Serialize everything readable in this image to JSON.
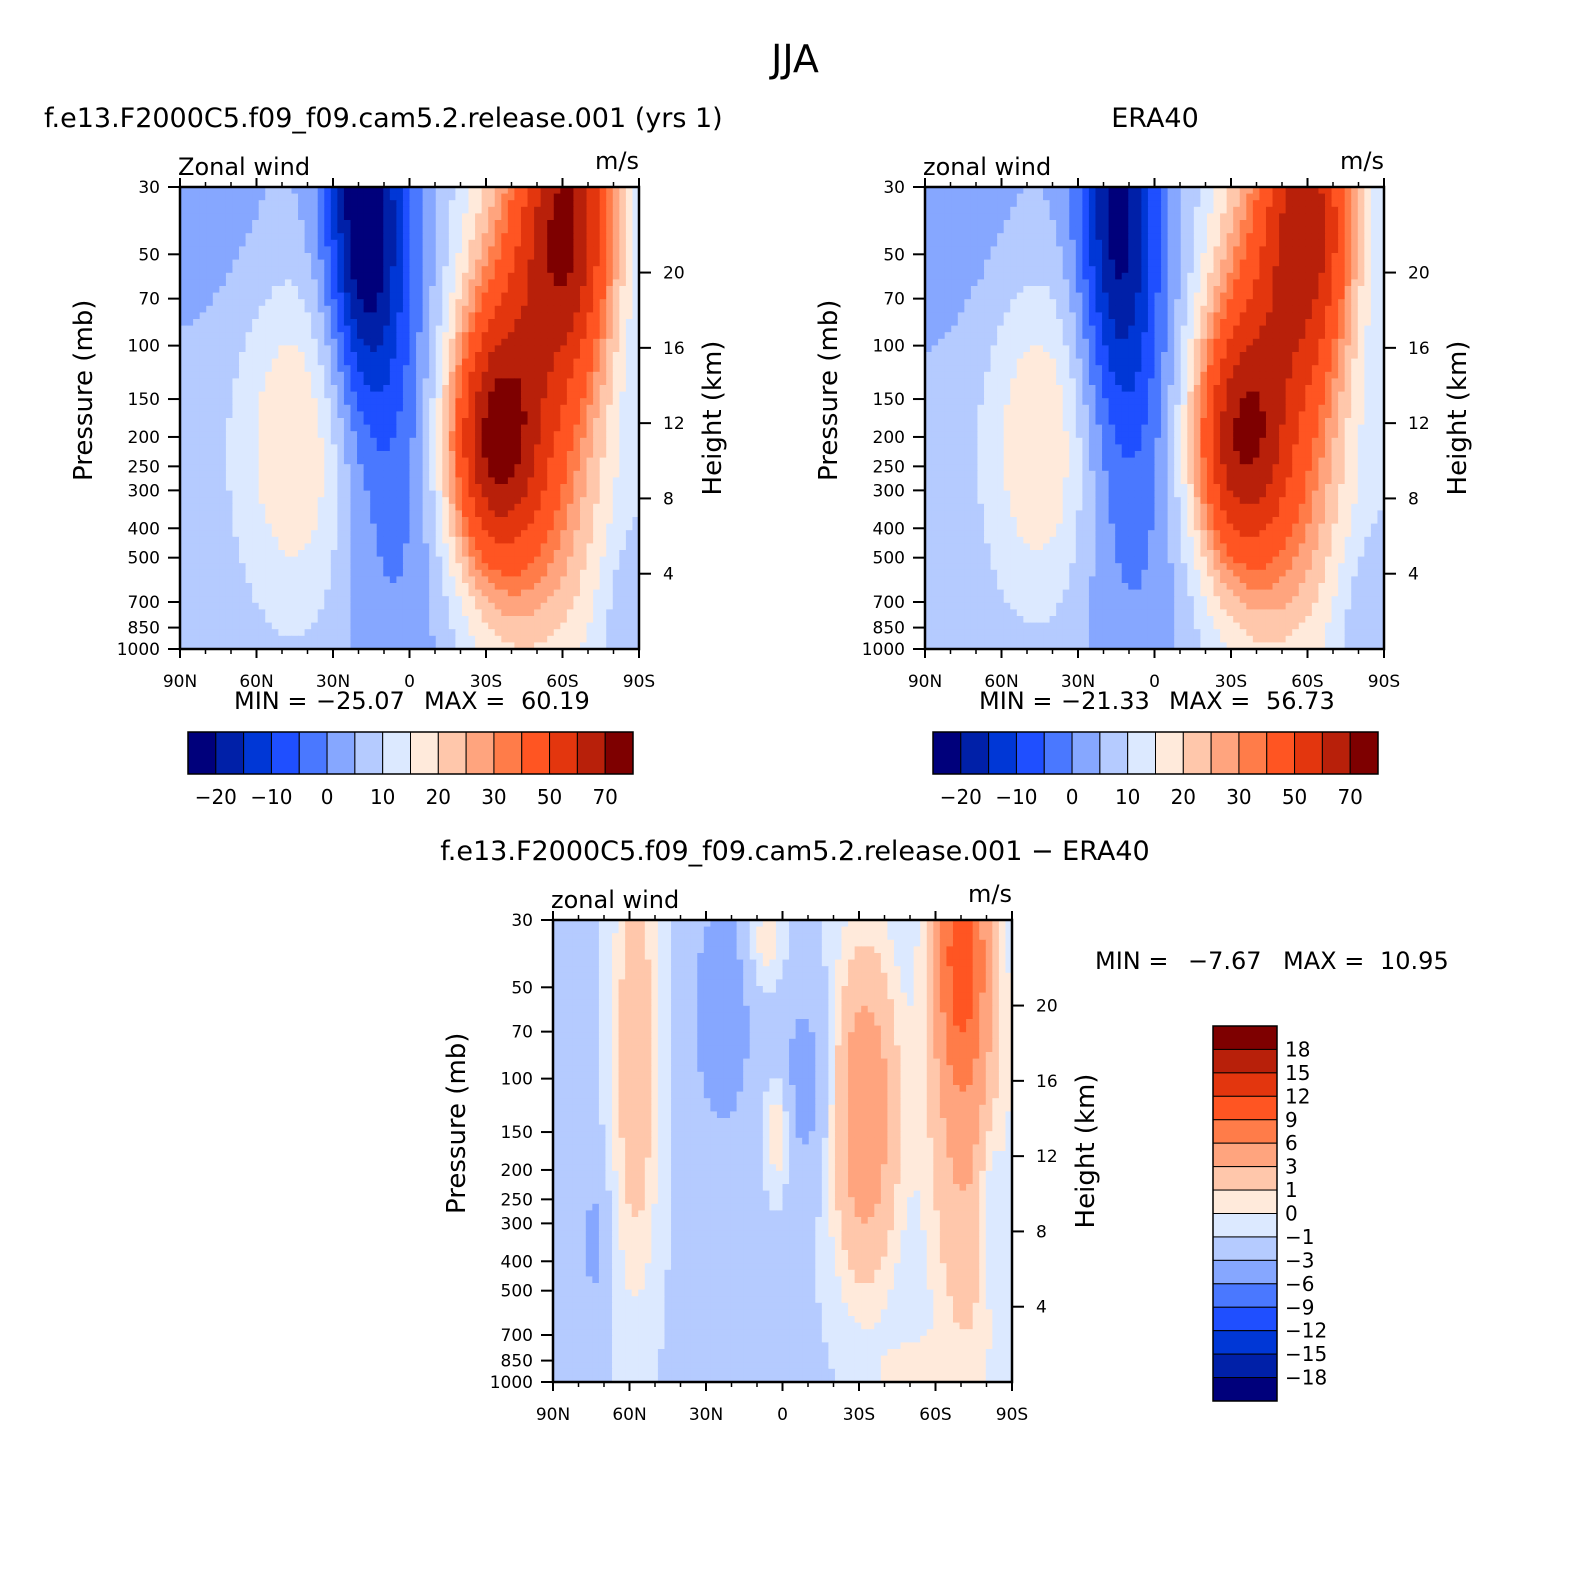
{
  "figure": {
    "title": "JJA"
  },
  "chart_data": [
    {
      "type": "contour",
      "title": "f.e13.F2000C5.f09_f09.cam5.2.release.001 (yrs 1)",
      "variable_label": "Zonal wind",
      "units": "m/s",
      "ylabel": "Pressure (mb)",
      "y2label": "Height (km)",
      "x_ticks": [
        "90N",
        "60N",
        "30N",
        "0",
        "30S",
        "60S",
        "90S"
      ],
      "y_ticks": [
        "30",
        "50",
        "70",
        "100",
        "150",
        "200",
        "250",
        "300",
        "400",
        "500",
        "700",
        "850",
        "1000"
      ],
      "y2_ticks": [
        "20",
        "16",
        "12",
        "8",
        "4"
      ],
      "stats": {
        "min_label": "MIN =",
        "min": "−25.07",
        "max_label": "MAX =",
        "max": "60.19"
      },
      "colorbar": {
        "orientation": "horizontal",
        "labels": [
          "−20",
          "−10",
          "0",
          "10",
          "20",
          "30",
          "50",
          "70"
        ],
        "colors": [
          "#00007b",
          "#0020a8",
          "#0037d6",
          "#1f4fff",
          "#4a78ff",
          "#86a7ff",
          "#b5cbff",
          "#dce9ff",
          "#ffeadb",
          "#ffc7ab",
          "#ffa47e",
          "#ff7c49",
          "#ff5522",
          "#e3360e",
          "#b8200a",
          "#7e0000"
        ]
      }
    },
    {
      "type": "contour",
      "title": "ERA40",
      "variable_label": "zonal wind",
      "units": "m/s",
      "ylabel": "Pressure (mb)",
      "y2label": "Height (km)",
      "x_ticks": [
        "90N",
        "60N",
        "30N",
        "0",
        "30S",
        "60S",
        "90S"
      ],
      "y_ticks": [
        "30",
        "50",
        "70",
        "100",
        "150",
        "200",
        "250",
        "300",
        "400",
        "500",
        "700",
        "850",
        "1000"
      ],
      "y2_ticks": [
        "20",
        "16",
        "12",
        "8",
        "4"
      ],
      "stats": {
        "min_label": "MIN =",
        "min": "−21.33",
        "max_label": "MAX =",
        "max": "56.73"
      },
      "colorbar": {
        "orientation": "horizontal",
        "labels": [
          "−20",
          "−10",
          "0",
          "10",
          "20",
          "30",
          "50",
          "70"
        ],
        "colors": [
          "#00007b",
          "#0020a8",
          "#0037d6",
          "#1f4fff",
          "#4a78ff",
          "#86a7ff",
          "#b5cbff",
          "#dce9ff",
          "#ffeadb",
          "#ffc7ab",
          "#ffa47e",
          "#ff7c49",
          "#ff5522",
          "#e3360e",
          "#b8200a",
          "#7e0000"
        ]
      }
    },
    {
      "type": "contour",
      "title": "f.e13.F2000C5.f09_f09.cam5.2.release.001 − ERA40",
      "variable_label": "zonal wind",
      "units": "m/s",
      "ylabel": "Pressure (mb)",
      "y2label": "Height (km)",
      "x_ticks": [
        "90N",
        "60N",
        "30N",
        "0",
        "30S",
        "60S",
        "90S"
      ],
      "y_ticks": [
        "30",
        "50",
        "70",
        "100",
        "150",
        "200",
        "250",
        "300",
        "400",
        "500",
        "700",
        "850",
        "1000"
      ],
      "y2_ticks": [
        "20",
        "16",
        "12",
        "8",
        "4"
      ],
      "stats": {
        "min_label": "MIN =",
        "min": "−7.67",
        "max_label": "MAX =",
        "max": "10.95"
      },
      "colorbar": {
        "orientation": "vertical",
        "labels": [
          "18",
          "15",
          "12",
          "9",
          "6",
          "3",
          "1",
          "0",
          "−1",
          "−3",
          "−6",
          "−9",
          "−12",
          "−15",
          "−18"
        ],
        "colors": [
          "#7e0000",
          "#b8200a",
          "#e3360e",
          "#ff5522",
          "#ff7c49",
          "#ffa47e",
          "#ffc7ab",
          "#ffeadb",
          "#dce9ff",
          "#b5cbff",
          "#86a7ff",
          "#4a78ff",
          "#1f4fff",
          "#0037d6",
          "#0020a8",
          "#00007b"
        ]
      }
    }
  ]
}
